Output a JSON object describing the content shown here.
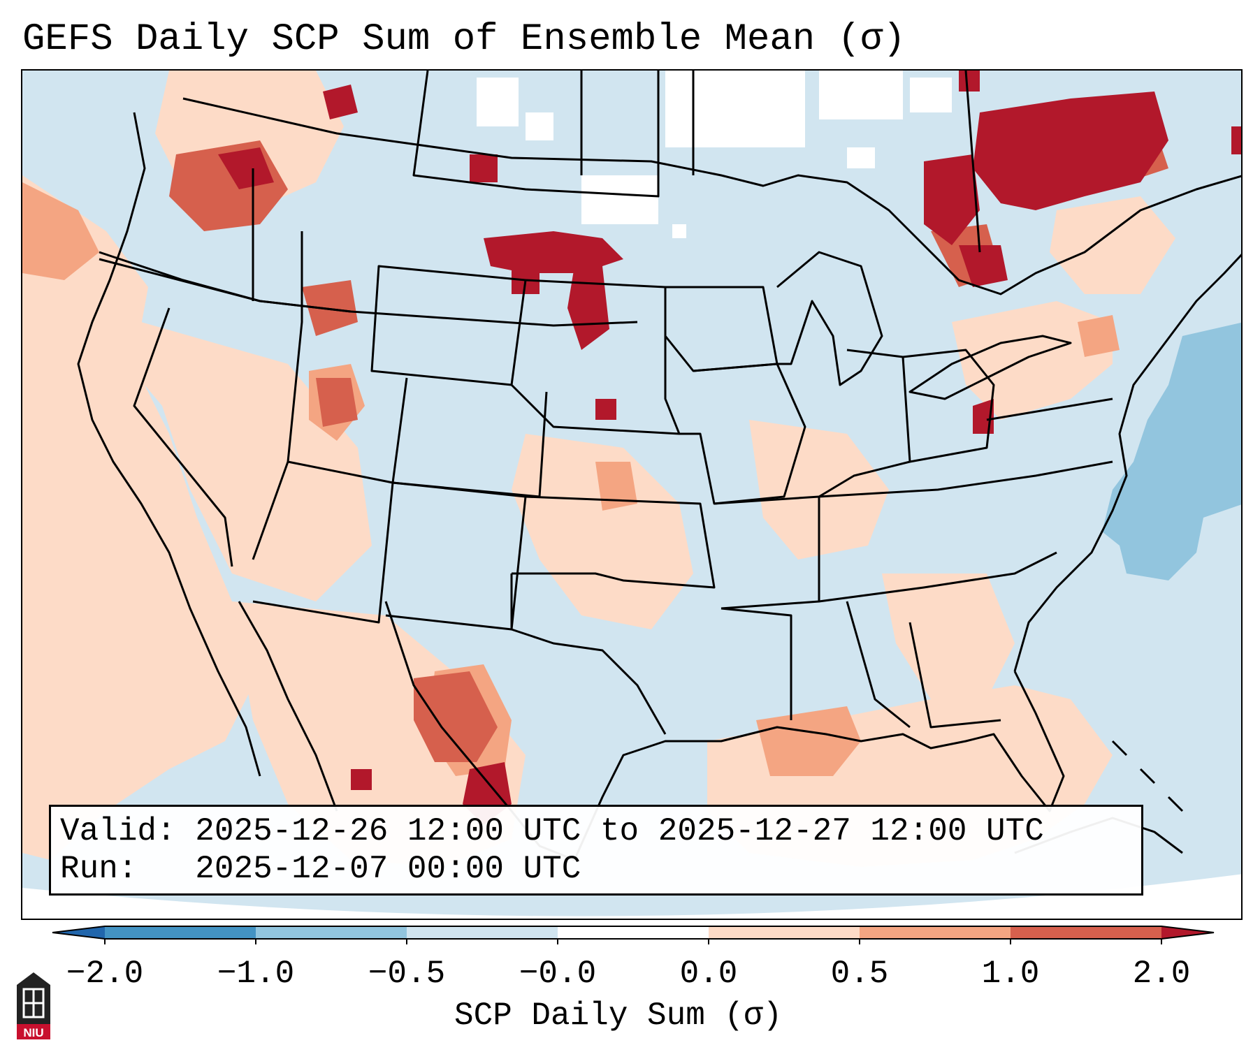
{
  "title": "GEFS Daily SCP Sum of Ensemble Mean (σ)",
  "info": {
    "valid_label": "Valid:",
    "valid_value": "2025-12-26 12:00 UTC to 2025-12-27 12:00 UTC",
    "run_label": "Run:",
    "run_value": "2025-12-07 00:00 UTC"
  },
  "colorbar": {
    "label": "SCP Daily Sum (σ)",
    "ticks": [
      "−2.0",
      "−1.0",
      "−0.5",
      "−0.0",
      "0.0",
      "0.5",
      "1.0",
      "2.0"
    ],
    "bins": [
      {
        "range": "< -2.0",
        "color": "#2166ac"
      },
      {
        "range": "-2.0 to -1.0",
        "color": "#4393c3"
      },
      {
        "range": "-1.0 to -0.5",
        "color": "#92c5de"
      },
      {
        "range": "-0.5 to -0.0",
        "color": "#d1e5f0"
      },
      {
        "range": "-0.0 to 0.0",
        "color": "#ffffff"
      },
      {
        "range": "0.0 to 0.5",
        "color": "#fddbc7"
      },
      {
        "range": "0.5 to 1.0",
        "color": "#f4a582"
      },
      {
        "range": "1.0 to 2.0",
        "color": "#d6604d"
      },
      {
        "range": "> 2.0",
        "color": "#b2182b"
      }
    ]
  },
  "map": {
    "projection": "Lambert Conformal, CONUS",
    "background_color": "#d1e5f0",
    "regions": [
      {
        "name": "Pacific Northwest",
        "category": "1.0 to 2.0"
      },
      {
        "name": "Northern Plains (SD/ND)",
        "category": "> 2.0"
      },
      {
        "name": "Eastern Canada (Quebec)",
        "category": "> 2.0"
      },
      {
        "name": "Northern Mexico",
        "category": "> 2.0"
      },
      {
        "name": "Gulf of Mexico",
        "category": "0.5 to 1.0"
      },
      {
        "name": "Western Atlantic",
        "category": "-1.0 to -0.5"
      },
      {
        "name": "Southern Canada interior",
        "category": "-0.0 to 0.0"
      }
    ]
  },
  "logo": {
    "name": "NIU logo",
    "text": "NIU"
  }
}
